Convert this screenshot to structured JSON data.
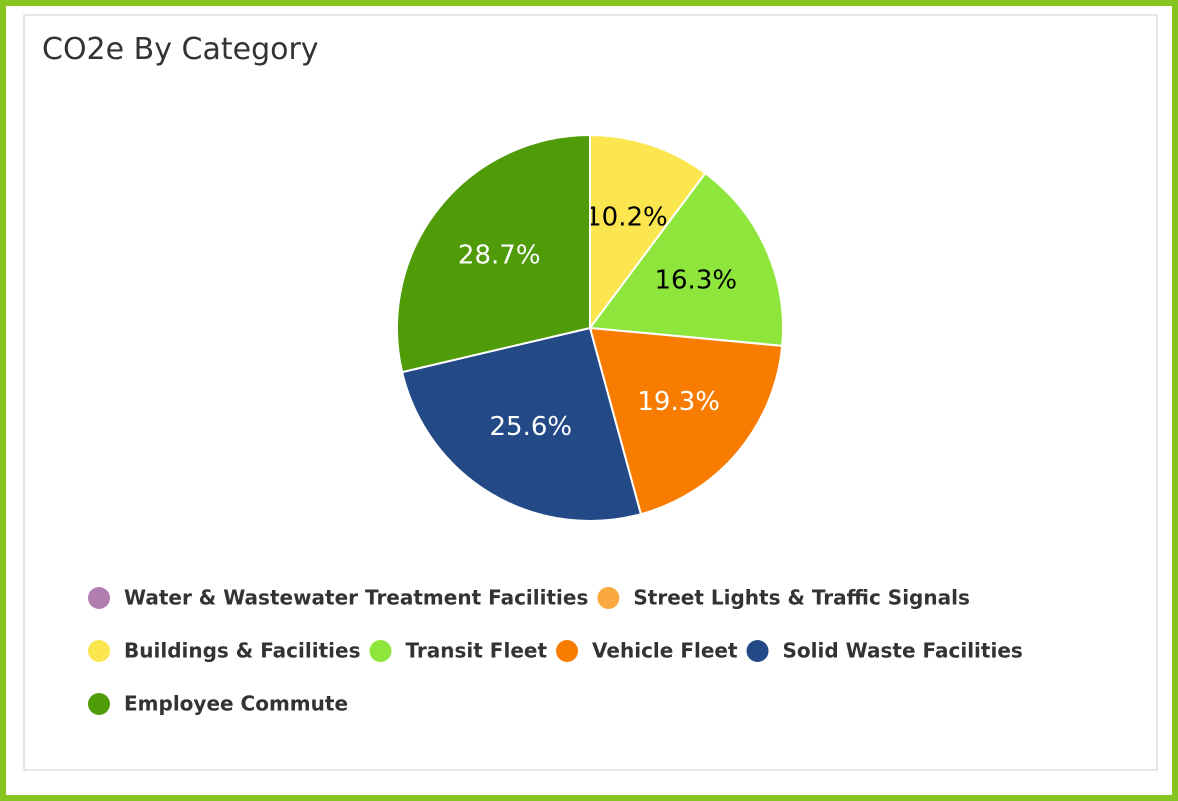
{
  "chart_data": {
    "type": "pie",
    "title": "CO2e By Category",
    "categories": [
      "Water & Wastewater Treatment Facilities",
      "Street Lights & Traffic Signals",
      "Buildings & Facilities",
      "Transit Fleet",
      "Vehicle Fleet",
      "Solid Waste Facilities",
      "Employee Commute"
    ],
    "values": [
      0,
      0,
      10.2,
      16.3,
      19.3,
      25.6,
      28.7
    ],
    "value_labels": [
      null,
      null,
      "10.2%",
      "16.3%",
      "19.3%",
      "25.6%",
      "28.7%"
    ],
    "colors": [
      "#b07fb0",
      "#f9a93f",
      "#fbe650",
      "#8ee53b",
      "#f77c00",
      "#234a87",
      "#4f9b08"
    ],
    "legend": "bottom"
  }
}
